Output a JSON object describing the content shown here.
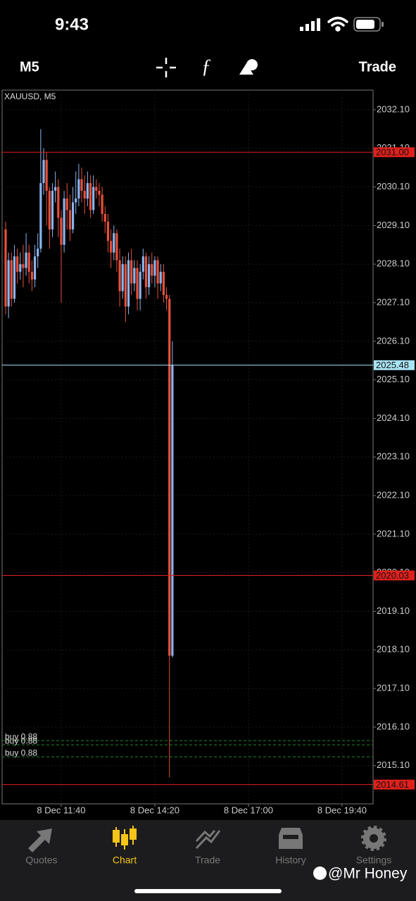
{
  "status_bar": {
    "time": "9:43"
  },
  "toolbar": {
    "timeframe": "M5",
    "trade": "Trade"
  },
  "chart_data": {
    "type": "candlestick",
    "title": "XAUUSD, M5",
    "x": [
      605,
      610,
      615,
      620,
      625,
      630,
      635,
      640,
      645,
      650,
      655,
      660,
      665,
      670,
      675,
      680,
      685,
      690,
      695,
      700,
      705,
      710,
      715,
      720,
      725,
      730,
      735,
      740,
      745,
      750,
      755,
      760,
      765,
      770,
      775,
      780,
      785,
      790,
      795,
      800,
      805,
      810,
      815,
      820,
      825,
      830,
      835,
      840,
      845,
      850,
      855,
      860,
      865,
      870,
      875,
      880,
      885,
      890
    ],
    "open": [
      2029.0,
      2027.0,
      2028.2,
      2027.2,
      2028.3,
      2027.9,
      2028.1,
      2028.0,
      2028.4,
      2027.9,
      2027.7,
      2028.3,
      2028.5,
      2030.2,
      2030.8,
      2030.0,
      2029.0,
      2030.0,
      2030.1,
      2029.3,
      2028.6,
      2029.8,
      2029.5,
      2029.0,
      2029.7,
      2029.8,
      2030.3,
      2030.0,
      2029.8,
      2030.2,
      2029.5,
      2030.1,
      2030.0,
      2029.9,
      2029.4,
      2029.2,
      2028.7,
      2028.4,
      2028.9,
      2028.2,
      2027.4,
      2028.1,
      2027.0,
      2028.2,
      2027.6,
      2028.0,
      2027.2,
      2027.9,
      2028.3,
      2027.5,
      2028.1,
      2027.8,
      2028.2,
      2027.6,
      2027.9,
      2027.3,
      2027.2,
      2017.95
    ],
    "high": [
      2029.2,
      2028.4,
      2028.4,
      2028.6,
      2028.5,
      2028.4,
      2028.6,
      2028.9,
      2028.6,
      2028.2,
      2028.6,
      2028.9,
      2031.6,
      2031.1,
      2031.0,
      2030.1,
      2030.2,
      2030.5,
      2030.3,
      2029.5,
      2030.0,
      2030.2,
      2029.9,
      2030.1,
      2030.5,
      2030.7,
      2030.6,
      2030.4,
      2030.5,
      2030.4,
      2030.4,
      2030.3,
      2030.2,
      2030.1,
      2029.6,
      2029.4,
      2029.0,
      2029.1,
      2029.0,
      2028.5,
      2028.3,
      2028.3,
      2028.4,
      2028.5,
      2028.2,
      2028.2,
      2028.1,
      2028.5,
      2028.4,
      2028.3,
      2028.4,
      2028.3,
      2028.3,
      2028.1,
      2028.1,
      2027.5,
      2027.3,
      2026.1
    ],
    "low": [
      2026.8,
      2026.7,
      2027.0,
      2027.1,
      2027.6,
      2027.7,
      2027.5,
      2027.8,
      2027.6,
      2027.4,
      2027.5,
      2028.0,
      2028.4,
      2029.9,
      2029.1,
      2028.5,
      2028.8,
      2029.7,
      2028.8,
      2027.1,
      2028.4,
      2029.0,
      2028.7,
      2028.9,
      2029.4,
      2029.6,
      2029.7,
      2029.4,
      2029.6,
      2029.3,
      2029.4,
      2029.8,
      2029.6,
      2029.2,
      2028.9,
      2028.4,
      2028.0,
      2028.2,
      2027.9,
      2027.0,
      2027.2,
      2026.6,
      2026.8,
      2027.3,
      2027.4,
      2026.9,
      2026.9,
      2027.7,
      2027.2,
      2027.3,
      2027.6,
      2027.5,
      2027.2,
      2027.4,
      2027.1,
      2026.9,
      2014.8,
      2017.9
    ],
    "close": [
      2027.0,
      2028.2,
      2027.2,
      2028.3,
      2027.9,
      2028.1,
      2028.0,
      2028.4,
      2027.9,
      2027.7,
      2028.3,
      2028.5,
      2030.2,
      2030.8,
      2030.0,
      2029.0,
      2030.0,
      2030.1,
      2029.3,
      2028.6,
      2029.8,
      2029.5,
      2029.0,
      2029.7,
      2029.8,
      2030.3,
      2030.0,
      2029.8,
      2030.2,
      2029.5,
      2030.1,
      2030.0,
      2029.9,
      2029.4,
      2029.2,
      2028.7,
      2028.4,
      2028.9,
      2028.2,
      2027.4,
      2028.1,
      2027.0,
      2028.2,
      2027.6,
      2028.0,
      2027.2,
      2027.9,
      2028.3,
      2027.5,
      2028.1,
      2027.8,
      2028.2,
      2027.6,
      2027.9,
      2027.3,
      2027.2,
      2017.95,
      2025.48
    ],
    "up_color": "#8ab4ee",
    "down_color": "#e8503a",
    "xlim": [
      599,
      1233
    ],
    "xticks": [
      {
        "value": 700,
        "label": "8 Dec 11:40"
      },
      {
        "value": 860,
        "label": "8 Dec 14:20"
      },
      {
        "value": 1020,
        "label": "8 Dec 17:00"
      },
      {
        "value": 1180,
        "label": "8 Dec 19:40"
      }
    ],
    "ylim": [
      2014.11,
      2032.61
    ],
    "yticks": [
      {
        "value": 2032.1,
        "label": "2032.10"
      },
      {
        "value": 2031.1,
        "label": "2031.10"
      },
      {
        "value": 2030.1,
        "label": "2030.10"
      },
      {
        "value": 2029.1,
        "label": "2029.10"
      },
      {
        "value": 2028.1,
        "label": "2028.10"
      },
      {
        "value": 2027.1,
        "label": "2027.10"
      },
      {
        "value": 2026.1,
        "label": "2026.10"
      },
      {
        "value": 2025.1,
        "label": "2025.10"
      },
      {
        "value": 2024.1,
        "label": "2024.10"
      },
      {
        "value": 2023.1,
        "label": "2023.10"
      },
      {
        "value": 2022.1,
        "label": "2022.10"
      },
      {
        "value": 2021.1,
        "label": "2021.10"
      },
      {
        "value": 2020.1,
        "label": "2020.10"
      },
      {
        "value": 2019.1,
        "label": "2019.10"
      },
      {
        "value": 2018.1,
        "label": "2018.10"
      },
      {
        "value": 2017.1,
        "label": "2017.10"
      },
      {
        "value": 2016.1,
        "label": "2016.10"
      },
      {
        "value": 2015.1,
        "label": "2015.10"
      }
    ],
    "grid": true,
    "levels": [
      {
        "value": 2031,
        "label": "2031.00",
        "color": "#e0201c"
      },
      {
        "value": 2025.48,
        "label": "2025.48",
        "color": "#a8e4f4"
      },
      {
        "value": 2020.03,
        "label": "2020.03",
        "color": "#e0201c"
      },
      {
        "value": 2014.61,
        "label": "2014.61",
        "color": "#e0201c"
      }
    ],
    "orders": [
      {
        "label": "buy 0.88",
        "value": 2015.75,
        "color": "#1f8a2e"
      },
      {
        "label": "buy 0.88",
        "value": 2015.64,
        "color": "#1f8a2e"
      },
      {
        "label": "buy 0.88",
        "value": 2015.33,
        "color": "#1f8a2e"
      }
    ]
  },
  "tab_bar": {
    "tabs": [
      "Quotes",
      "Chart",
      "Trade",
      "History",
      "Settings"
    ],
    "active": 1
  },
  "watermark": "@Mr Honey"
}
